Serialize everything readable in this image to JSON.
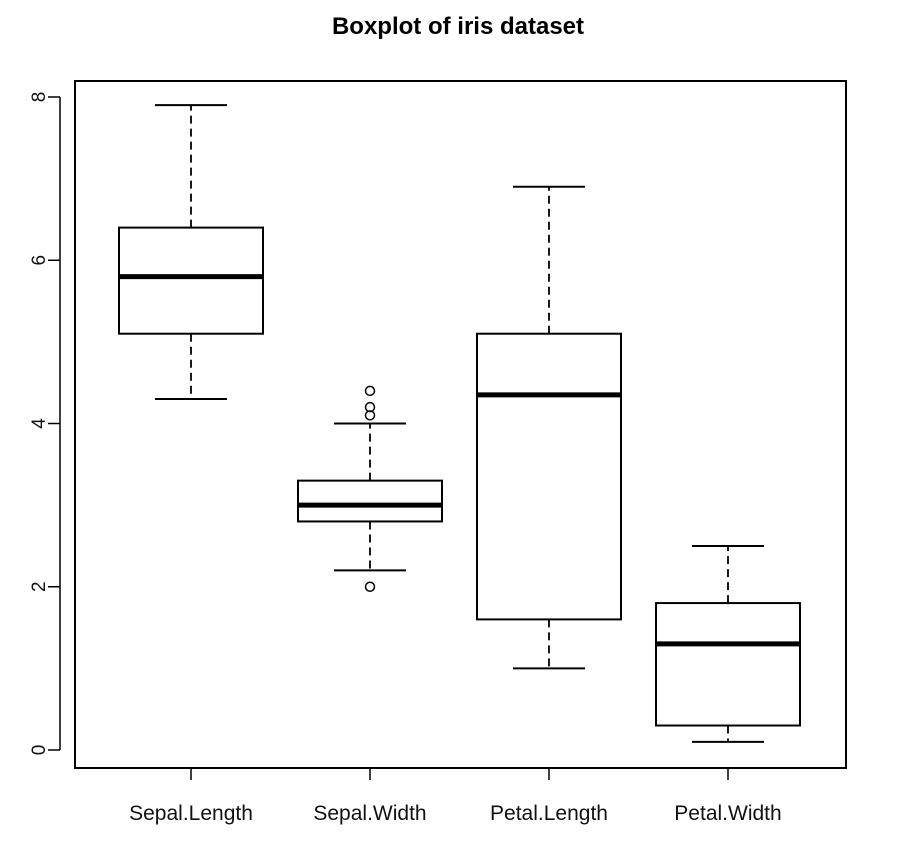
{
  "chart_data": {
    "type": "boxplot",
    "title": "Boxplot of iris dataset",
    "xlabel": "",
    "ylabel": "",
    "ylim": [
      0,
      8
    ],
    "y_ticks": [
      "0",
      "2",
      "4",
      "6",
      "8"
    ],
    "grid": false,
    "categories": [
      "Sepal.Length",
      "Sepal.Width",
      "Petal.Length",
      "Petal.Width"
    ],
    "boxes": [
      {
        "category": "Sepal.Length",
        "min": 4.3,
        "q1": 5.1,
        "median": 5.8,
        "q3": 6.4,
        "max": 7.9,
        "outliers": []
      },
      {
        "category": "Sepal.Width",
        "min": 2.2,
        "q1": 2.8,
        "median": 3.0,
        "q3": 3.3,
        "max": 4.0,
        "outliers": [
          4.1,
          4.2,
          4.4,
          2.0
        ]
      },
      {
        "category": "Petal.Length",
        "min": 1.0,
        "q1": 1.6,
        "median": 4.35,
        "q3": 5.1,
        "max": 6.9,
        "outliers": []
      },
      {
        "category": "Petal.Width",
        "min": 0.1,
        "q1": 0.3,
        "median": 1.3,
        "q3": 1.8,
        "max": 2.5,
        "outliers": []
      }
    ],
    "colors": {
      "box_fill": "#ffffff",
      "stroke": "#000000",
      "median": "#000000"
    }
  }
}
